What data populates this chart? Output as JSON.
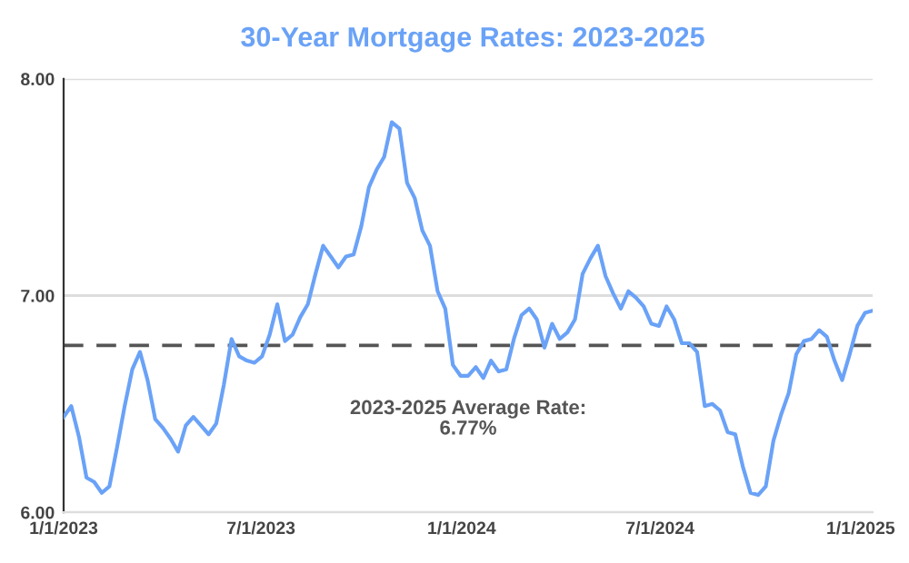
{
  "chart_data": {
    "type": "line",
    "title": "30-Year Mortgage Rates: 2023-2025",
    "x": [
      "2023-01-01",
      "2023-01-08",
      "2023-01-15",
      "2023-01-22",
      "2023-01-29",
      "2023-02-05",
      "2023-02-12",
      "2023-02-19",
      "2023-02-26",
      "2023-03-05",
      "2023-03-12",
      "2023-03-19",
      "2023-03-26",
      "2023-04-02",
      "2023-04-09",
      "2023-04-16",
      "2023-04-23",
      "2023-04-30",
      "2023-05-07",
      "2023-05-14",
      "2023-05-21",
      "2023-05-28",
      "2023-06-04",
      "2023-06-11",
      "2023-06-18",
      "2023-06-25",
      "2023-07-02",
      "2023-07-09",
      "2023-07-16",
      "2023-07-23",
      "2023-07-30",
      "2023-08-06",
      "2023-08-13",
      "2023-08-20",
      "2023-08-27",
      "2023-09-03",
      "2023-09-10",
      "2023-09-17",
      "2023-09-24",
      "2023-10-01",
      "2023-10-08",
      "2023-10-15",
      "2023-10-22",
      "2023-10-29",
      "2023-11-05",
      "2023-11-12",
      "2023-11-19",
      "2023-11-26",
      "2023-12-03",
      "2023-12-10",
      "2023-12-17",
      "2023-12-24",
      "2023-12-31",
      "2024-01-07",
      "2024-01-14",
      "2024-01-21",
      "2024-01-28",
      "2024-02-04",
      "2024-02-11",
      "2024-02-18",
      "2024-02-25",
      "2024-03-03",
      "2024-03-10",
      "2024-03-17",
      "2024-03-24",
      "2024-03-31",
      "2024-04-07",
      "2024-04-14",
      "2024-04-21",
      "2024-04-28",
      "2024-05-05",
      "2024-05-12",
      "2024-05-19",
      "2024-05-26",
      "2024-06-02",
      "2024-06-09",
      "2024-06-16",
      "2024-06-23",
      "2024-06-30",
      "2024-07-07",
      "2024-07-14",
      "2024-07-21",
      "2024-07-28",
      "2024-08-04",
      "2024-08-11",
      "2024-08-18",
      "2024-08-25",
      "2024-09-01",
      "2024-09-08",
      "2024-09-15",
      "2024-09-22",
      "2024-09-29",
      "2024-10-06",
      "2024-10-13",
      "2024-10-20",
      "2024-10-27",
      "2024-11-03",
      "2024-11-10",
      "2024-11-17",
      "2024-11-24",
      "2024-12-01",
      "2024-12-08",
      "2024-12-15",
      "2024-12-22",
      "2024-12-29",
      "2025-01-05",
      "2025-01-12"
    ],
    "series": [
      {
        "color": "#6aa2f7",
        "values": [
          6.44,
          6.49,
          6.35,
          6.16,
          6.14,
          6.09,
          6.12,
          6.3,
          6.49,
          6.66,
          6.74,
          6.61,
          6.43,
          6.39,
          6.34,
          6.28,
          6.4,
          6.44,
          6.4,
          6.36,
          6.41,
          6.59,
          6.8,
          6.72,
          6.7,
          6.69,
          6.72,
          6.82,
          6.96,
          6.79,
          6.82,
          6.9,
          6.96,
          7.1,
          7.23,
          7.18,
          7.13,
          7.18,
          7.19,
          7.32,
          7.5,
          7.58,
          7.64,
          7.8,
          7.77,
          7.52,
          7.45,
          7.3,
          7.23,
          7.02,
          6.94,
          6.68,
          6.63,
          6.63,
          6.67,
          6.62,
          6.7,
          6.65,
          6.66,
          6.8,
          6.91,
          6.94,
          6.89,
          6.76,
          6.87,
          6.8,
          6.83,
          6.89,
          7.1,
          7.17,
          7.23,
          7.09,
          7.01,
          6.94,
          7.02,
          6.99,
          6.95,
          6.87,
          6.86,
          6.95,
          6.89,
          6.78,
          6.78,
          6.74,
          6.49,
          6.5,
          6.47,
          6.37,
          6.36,
          6.21,
          6.09,
          6.08,
          6.12,
          6.33,
          6.45,
          6.55,
          6.73,
          6.79,
          6.8,
          6.84,
          6.81,
          6.7,
          6.61,
          6.73,
          6.86,
          6.92,
          6.93
        ]
      }
    ],
    "xlim": [
      "2023-01-01",
      "2025-01-12"
    ],
    "xticks": [
      {
        "value": "2023-01-01",
        "label": "1/1/2023"
      },
      {
        "value": "2023-07-01",
        "label": "7/1/2023"
      },
      {
        "value": "2024-01-01",
        "label": "1/1/2024"
      },
      {
        "value": "2024-07-01",
        "label": "7/1/2024"
      },
      {
        "value": "2025-01-01",
        "label": "1/1/2025"
      }
    ],
    "ylim": [
      6,
      8
    ],
    "yticks": [
      {
        "value": 6,
        "label": "6.00"
      },
      {
        "value": 7,
        "label": "7.00"
      },
      {
        "value": 8,
        "label": "8.00"
      }
    ],
    "grid": "y",
    "marker": "none",
    "line_style": "solid",
    "ref_lines": [
      {
        "axis": "y",
        "value": 6.77,
        "label": "2023-2025 Average Rate:\n6.77%",
        "color": "#555555",
        "line_style": "dashed"
      }
    ]
  }
}
